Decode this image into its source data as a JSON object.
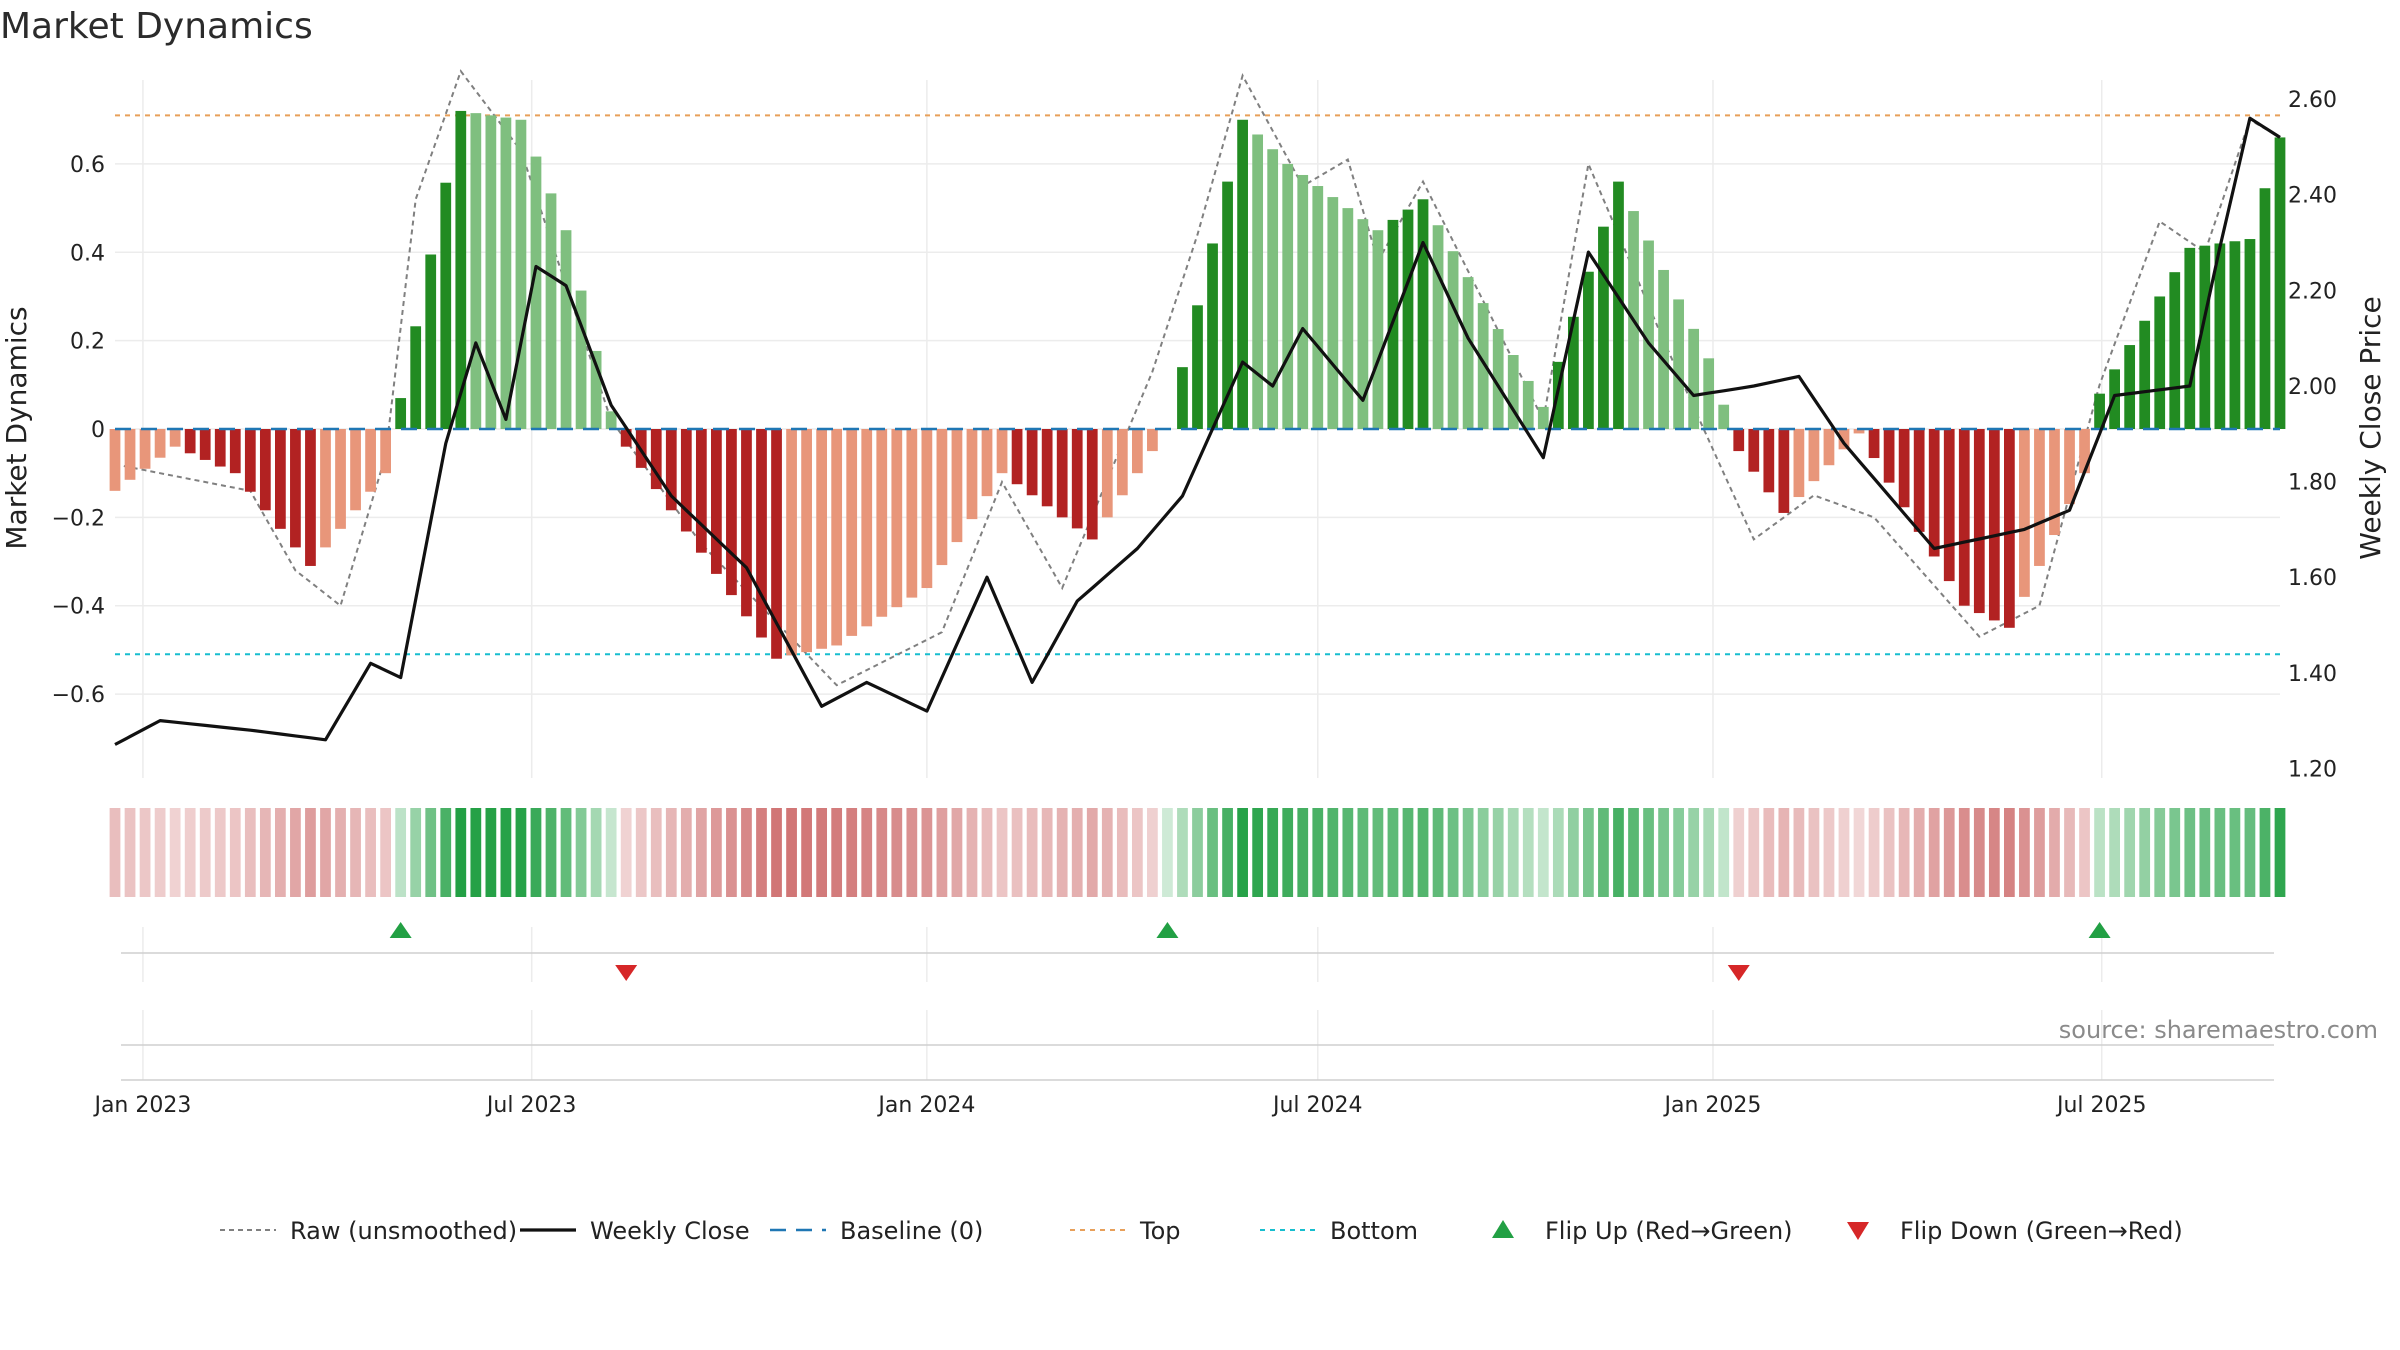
{
  "chart_data": {
    "type": "bar",
    "title": "Market Dynamics",
    "ylabel_left": "Market Dynamics",
    "ylabel_right": "Weekly Close Price",
    "ylim_left": [
      -0.79,
      0.79
    ],
    "ylim_right": [
      1.18,
      2.64
    ],
    "left_ticks": [
      0.6,
      0.4,
      0.2,
      0,
      -0.2,
      -0.4,
      -0.6
    ],
    "left_tick_labels": [
      "0.6",
      "0.4",
      "0.2",
      "0",
      "−0.2",
      "−0.4",
      "−0.6"
    ],
    "right_ticks": [
      2.6,
      2.4,
      2.2,
      2.0,
      1.8,
      1.6,
      1.4,
      1.2
    ],
    "right_tick_labels": [
      "2.60",
      "2.40",
      "2.20",
      "2.00",
      "1.80",
      "1.60",
      "1.40",
      "1.20"
    ],
    "x_start": "2022-12-19",
    "x_end": "2025-09-22",
    "x_ticks": [
      "2023-01-01",
      "2023-07-01",
      "2024-01-01",
      "2024-07-01",
      "2025-01-01",
      "2025-07-01"
    ],
    "x_tick_labels": [
      "Jan 2023",
      "Jul 2023",
      "Jan 2024",
      "Jul 2024",
      "Jan 2025",
      "Jul 2025"
    ],
    "top_level": 0.71,
    "bottom_level": -0.51,
    "baseline": 0,
    "grid": true,
    "legend_position": "bottom-center",
    "colors": {
      "green_strong": "#228b22",
      "green_light": "#7fbf7f",
      "red_strong": "#b22222",
      "red_light": "#e8967a",
      "price": "#111111",
      "raw": "#808080",
      "baseline": "#1f77b4",
      "top": "#e8a05a",
      "bottom": "#17becf",
      "flip_up": "#22a044",
      "flip_down": "#d62728"
    },
    "dynamics_keypoints": [
      [
        "2022-12-19",
        -0.14
      ],
      [
        "2023-01-16",
        -0.04
      ],
      [
        "2023-02-13",
        -0.1
      ],
      [
        "2023-03-20",
        -0.31
      ],
      [
        "2023-04-24",
        -0.1
      ],
      [
        "2023-05-01",
        0.07
      ],
      [
        "2023-05-29",
        0.72
      ],
      [
        "2023-06-26",
        0.7
      ],
      [
        "2023-07-17",
        0.45
      ],
      [
        "2023-08-07",
        0.04
      ],
      [
        "2023-08-14",
        -0.04
      ],
      [
        "2023-10-23",
        -0.52
      ],
      [
        "2023-11-20",
        -0.49
      ],
      [
        "2024-01-01",
        -0.36
      ],
      [
        "2024-02-05",
        -0.1
      ],
      [
        "2024-03-18",
        -0.25
      ],
      [
        "2024-04-22",
        0.0
      ],
      [
        "2024-05-27",
        0.7
      ],
      [
        "2024-06-17",
        0.6
      ],
      [
        "2024-07-29",
        0.45
      ],
      [
        "2024-08-19",
        0.52
      ],
      [
        "2024-10-14",
        0.05
      ],
      [
        "2024-11-18",
        0.56
      ],
      [
        "2024-12-30",
        0.16
      ],
      [
        "2025-01-13",
        -0.05
      ],
      [
        "2025-02-03",
        -0.19
      ],
      [
        "2025-03-10",
        -0.01
      ],
      [
        "2025-04-28",
        -0.4
      ],
      [
        "2025-05-19",
        -0.45
      ],
      [
        "2025-06-23",
        -0.1
      ],
      [
        "2025-06-30",
        0.08
      ],
      [
        "2025-08-11",
        0.41
      ],
      [
        "2025-09-08",
        0.43
      ],
      [
        "2025-09-22",
        0.66
      ]
    ],
    "raw_keypoints": [
      [
        "2022-12-19",
        -0.08
      ],
      [
        "2023-02-20",
        -0.14
      ],
      [
        "2023-03-13",
        -0.32
      ],
      [
        "2023-04-03",
        -0.4
      ],
      [
        "2023-04-24",
        -0.06
      ],
      [
        "2023-05-08",
        0.52
      ],
      [
        "2023-05-29",
        0.81
      ],
      [
        "2023-06-26",
        0.63
      ],
      [
        "2023-08-07",
        0.02
      ],
      [
        "2023-09-18",
        -0.26
      ],
      [
        "2023-11-20",
        -0.58
      ],
      [
        "2024-01-08",
        -0.46
      ],
      [
        "2024-02-05",
        -0.12
      ],
      [
        "2024-03-04",
        -0.36
      ],
      [
        "2024-04-15",
        0.13
      ],
      [
        "2024-05-06",
        0.44
      ],
      [
        "2024-05-27",
        0.8
      ],
      [
        "2024-06-24",
        0.55
      ],
      [
        "2024-07-15",
        0.61
      ],
      [
        "2024-07-29",
        0.38
      ],
      [
        "2024-08-19",
        0.56
      ],
      [
        "2024-10-14",
        0.02
      ],
      [
        "2024-11-04",
        0.6
      ],
      [
        "2024-12-09",
        0.2
      ],
      [
        "2025-01-20",
        -0.25
      ],
      [
        "2025-02-17",
        -0.15
      ],
      [
        "2025-03-17",
        -0.2
      ],
      [
        "2025-05-05",
        -0.47
      ],
      [
        "2025-06-02",
        -0.4
      ],
      [
        "2025-06-30",
        0.1
      ],
      [
        "2025-07-28",
        0.47
      ],
      [
        "2025-08-18",
        0.4
      ],
      [
        "2025-09-08",
        0.7
      ],
      [
        "2025-09-22",
        0.66
      ]
    ],
    "price_keypoints": [
      [
        "2022-12-19",
        1.25
      ],
      [
        "2023-01-09",
        1.3
      ],
      [
        "2023-02-20",
        1.28
      ],
      [
        "2023-03-27",
        1.26
      ],
      [
        "2023-04-17",
        1.42
      ],
      [
        "2023-05-01",
        1.39
      ],
      [
        "2023-05-22",
        1.88
      ],
      [
        "2023-06-05",
        2.09
      ],
      [
        "2023-06-19",
        1.93
      ],
      [
        "2023-07-03",
        2.25
      ],
      [
        "2023-07-17",
        2.21
      ],
      [
        "2023-08-07",
        1.96
      ],
      [
        "2023-09-04",
        1.77
      ],
      [
        "2023-10-09",
        1.62
      ],
      [
        "2023-11-13",
        1.33
      ],
      [
        "2023-12-04",
        1.38
      ],
      [
        "2024-01-01",
        1.32
      ],
      [
        "2024-01-29",
        1.6
      ],
      [
        "2024-02-19",
        1.38
      ],
      [
        "2024-03-11",
        1.55
      ],
      [
        "2024-04-08",
        1.66
      ],
      [
        "2024-04-29",
        1.77
      ],
      [
        "2024-05-27",
        2.05
      ],
      [
        "2024-06-10",
        2.0
      ],
      [
        "2024-06-24",
        2.12
      ],
      [
        "2024-07-22",
        1.97
      ],
      [
        "2024-08-19",
        2.3
      ],
      [
        "2024-09-09",
        2.1
      ],
      [
        "2024-10-14",
        1.85
      ],
      [
        "2024-11-04",
        2.28
      ],
      [
        "2024-12-02",
        2.09
      ],
      [
        "2024-12-23",
        1.98
      ],
      [
        "2025-01-20",
        2.0
      ],
      [
        "2025-02-10",
        2.02
      ],
      [
        "2025-03-03",
        1.88
      ],
      [
        "2025-04-14",
        1.66
      ],
      [
        "2025-05-26",
        1.7
      ],
      [
        "2025-06-16",
        1.74
      ],
      [
        "2025-07-07",
        1.98
      ],
      [
        "2025-08-11",
        2.0
      ],
      [
        "2025-08-25",
        2.29
      ],
      [
        "2025-09-08",
        2.56
      ],
      [
        "2025-09-22",
        2.52
      ]
    ],
    "flips_up": [
      "2023-05-01",
      "2024-04-22",
      "2025-06-30"
    ],
    "flips_down": [
      "2023-08-14",
      "2025-01-13"
    ]
  },
  "legend": [
    {
      "key": "raw",
      "label": "Raw (unsmoothed)"
    },
    {
      "key": "close",
      "label": "Weekly Close"
    },
    {
      "key": "baseline",
      "label": "Baseline (0)"
    },
    {
      "key": "top",
      "label": "Top"
    },
    {
      "key": "bottom",
      "label": "Bottom"
    },
    {
      "key": "flip_up",
      "label": "Flip Up (Red→Green)"
    },
    {
      "key": "flip_down",
      "label": "Flip Down (Green→Red)"
    }
  ],
  "source_text": "source: sharemaestro.com"
}
